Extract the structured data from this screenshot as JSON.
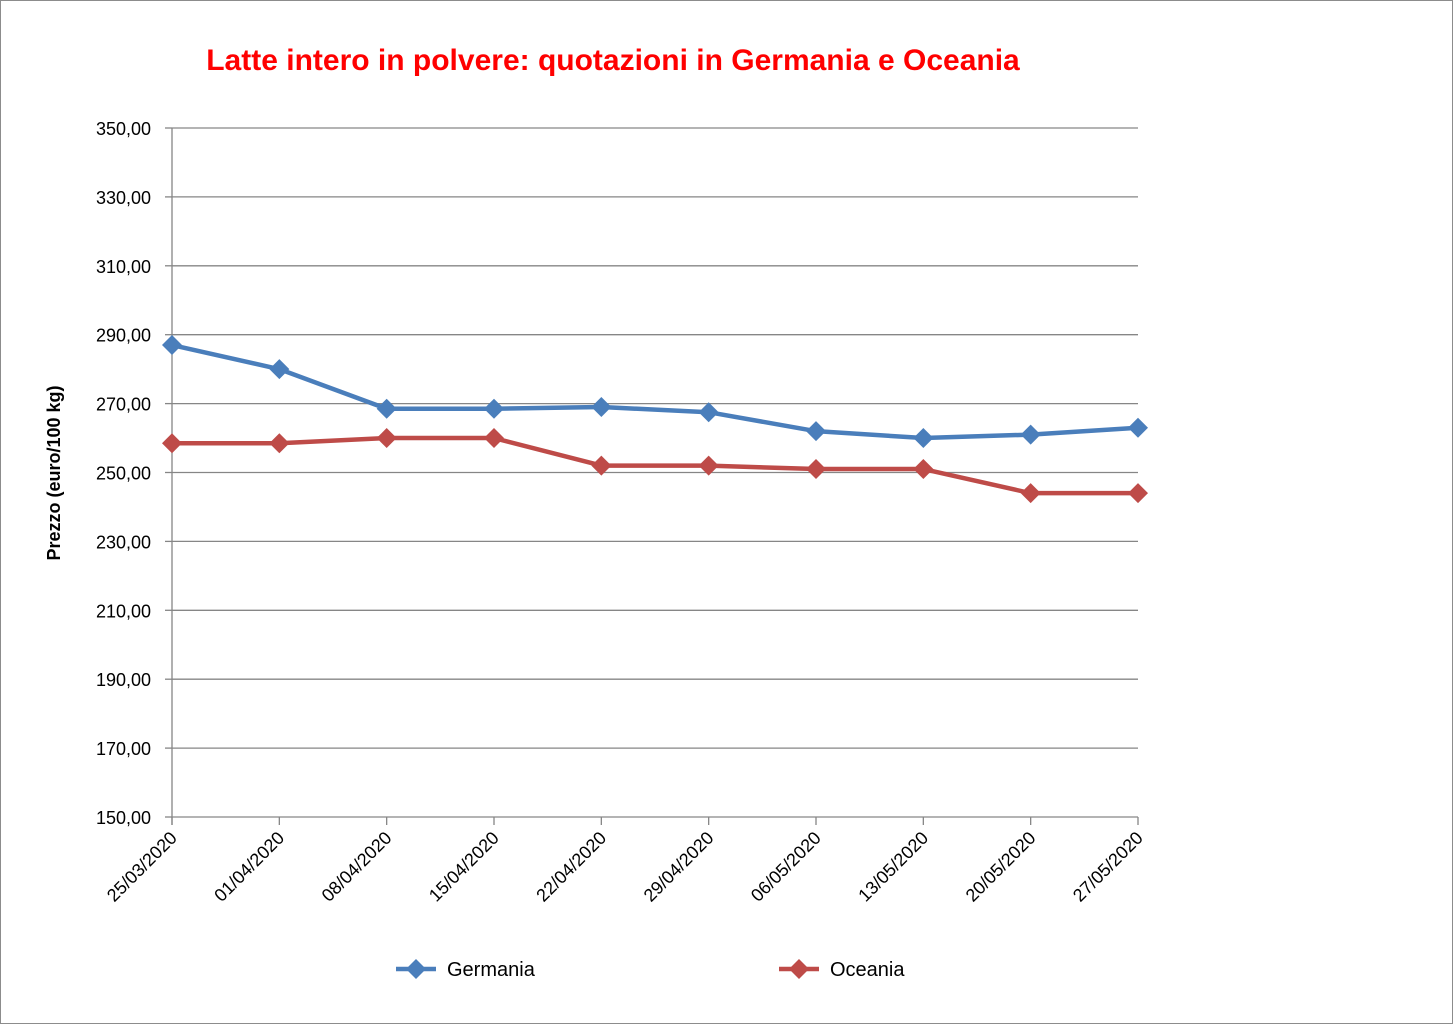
{
  "chart_data": {
    "type": "line",
    "title": "Latte intero in polvere: quotazioni in Germania e Oceania",
    "xlabel": "",
    "ylabel": "Prezzo (euro/100 kg)",
    "ylim": [
      150,
      350
    ],
    "y_ticks": [
      "150,00",
      "170,00",
      "190,00",
      "210,00",
      "230,00",
      "250,00",
      "270,00",
      "290,00",
      "310,00",
      "330,00",
      "350,00"
    ],
    "categories": [
      "25/03/2020",
      "01/04/2020",
      "08/04/2020",
      "15/04/2020",
      "22/04/2020",
      "29/04/2020",
      "06/05/2020",
      "13/05/2020",
      "20/05/2020",
      "27/05/2020"
    ],
    "series": [
      {
        "name": "Germania",
        "color": "#4a7ebb",
        "values": [
          287.0,
          280.0,
          268.5,
          268.5,
          269.0,
          267.5,
          262.0,
          260.0,
          261.0,
          263.0
        ]
      },
      {
        "name": "Oceania",
        "color": "#be4b48",
        "values": [
          258.5,
          258.5,
          260.0,
          260.0,
          252.0,
          252.0,
          251.0,
          251.0,
          244.0,
          244.0
        ]
      }
    ],
    "grid": true,
    "legend_position": "bottom"
  }
}
